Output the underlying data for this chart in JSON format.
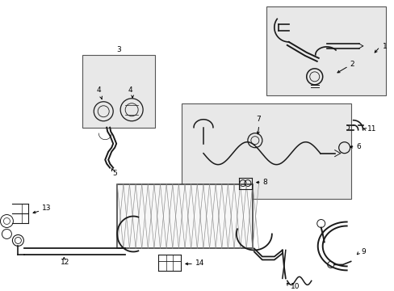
{
  "bg_color": "#ffffff",
  "line_color": "#1a1a1a",
  "box_fill": "#e8e8e8",
  "fig_width": 4.89,
  "fig_height": 3.6,
  "dpi": 100
}
